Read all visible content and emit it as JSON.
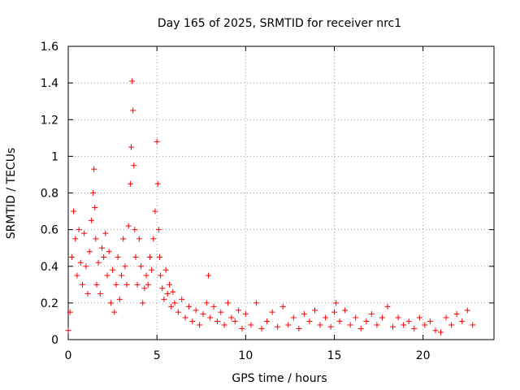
{
  "chart_data": {
    "type": "scatter",
    "title": "Day 165 of 2025, SRMTID for receiver nrc1",
    "xlabel": "GPS time / hours",
    "ylabel": "SRMTID / TECUs",
    "xlim": [
      0,
      24
    ],
    "ylim": [
      0,
      1.6
    ],
    "xticks": [
      0,
      5,
      10,
      15,
      20
    ],
    "xtick_labels": [
      "0",
      "5",
      "10",
      "15",
      "20"
    ],
    "yticks": [
      0,
      0.2,
      0.4,
      0.6,
      0.8,
      1,
      1.2,
      1.4,
      1.6
    ],
    "ytick_labels": [
      "0",
      "0.2",
      "0.4",
      "0.6",
      "0.8",
      "1",
      "1.2",
      "1.4",
      "1.6"
    ],
    "grid": true,
    "marker": "+",
    "color": "#ff0000",
    "series": [
      {
        "name": "nrc1",
        "x": [
          0.0,
          0.1,
          0.2,
          0.3,
          0.4,
          0.5,
          0.6,
          0.7,
          0.8,
          0.9,
          1.0,
          1.1,
          1.2,
          1.3,
          1.4,
          1.45,
          1.5,
          1.55,
          1.6,
          1.7,
          1.8,
          1.9,
          2.0,
          2.1,
          2.2,
          2.3,
          2.4,
          2.5,
          2.6,
          2.7,
          2.8,
          2.9,
          3.0,
          3.1,
          3.2,
          3.3,
          3.4,
          3.5,
          3.55,
          3.6,
          3.65,
          3.7,
          3.75,
          3.8,
          3.9,
          4.0,
          4.1,
          4.2,
          4.3,
          4.4,
          4.5,
          4.6,
          4.7,
          4.8,
          4.9,
          5.0,
          5.05,
          5.1,
          5.15,
          5.2,
          5.3,
          5.4,
          5.5,
          5.6,
          5.7,
          5.8,
          5.9,
          6.0,
          6.2,
          6.4,
          6.6,
          6.8,
          7.0,
          7.2,
          7.4,
          7.6,
          7.8,
          7.9,
          8.0,
          8.2,
          8.4,
          8.6,
          8.8,
          9.0,
          9.2,
          9.4,
          9.6,
          9.8,
          10.0,
          10.3,
          10.6,
          10.9,
          11.2,
          11.5,
          11.8,
          12.1,
          12.4,
          12.7,
          13.0,
          13.3,
          13.6,
          13.9,
          14.2,
          14.5,
          14.8,
          15.0,
          15.1,
          15.3,
          15.6,
          15.9,
          16.2,
          16.5,
          16.8,
          17.1,
          17.4,
          17.7,
          18.0,
          18.3,
          18.6,
          18.9,
          19.2,
          19.5,
          19.8,
          20.1,
          20.4,
          20.7,
          21.0,
          21.3,
          21.6,
          21.9,
          22.2,
          22.5,
          22.8
        ],
        "y": [
          0.05,
          0.15,
          0.45,
          0.7,
          0.55,
          0.35,
          0.6,
          0.42,
          0.3,
          0.58,
          0.4,
          0.25,
          0.48,
          0.65,
          0.8,
          0.93,
          0.72,
          0.55,
          0.3,
          0.42,
          0.25,
          0.5,
          0.45,
          0.58,
          0.35,
          0.48,
          0.2,
          0.38,
          0.15,
          0.3,
          0.45,
          0.22,
          0.35,
          0.55,
          0.4,
          0.3,
          0.62,
          0.85,
          1.05,
          1.41,
          1.25,
          0.95,
          0.6,
          0.45,
          0.3,
          0.55,
          0.4,
          0.2,
          0.28,
          0.35,
          0.3,
          0.45,
          0.38,
          0.55,
          0.7,
          1.08,
          0.85,
          0.6,
          0.45,
          0.35,
          0.28,
          0.22,
          0.38,
          0.25,
          0.3,
          0.18,
          0.26,
          0.2,
          0.15,
          0.22,
          0.12,
          0.18,
          0.1,
          0.16,
          0.08,
          0.14,
          0.2,
          0.35,
          0.12,
          0.18,
          0.1,
          0.15,
          0.08,
          0.2,
          0.12,
          0.1,
          0.16,
          0.06,
          0.14,
          0.08,
          0.2,
          0.06,
          0.1,
          0.15,
          0.07,
          0.18,
          0.08,
          0.12,
          0.06,
          0.14,
          0.1,
          0.16,
          0.08,
          0.12,
          0.07,
          0.15,
          0.2,
          0.1,
          0.16,
          0.08,
          0.12,
          0.06,
          0.1,
          0.14,
          0.08,
          0.12,
          0.18,
          0.07,
          0.12,
          0.08,
          0.1,
          0.06,
          0.12,
          0.08,
          0.1,
          0.05,
          0.04,
          0.12,
          0.08,
          0.14,
          0.1,
          0.16,
          0.08
        ]
      }
    ]
  }
}
